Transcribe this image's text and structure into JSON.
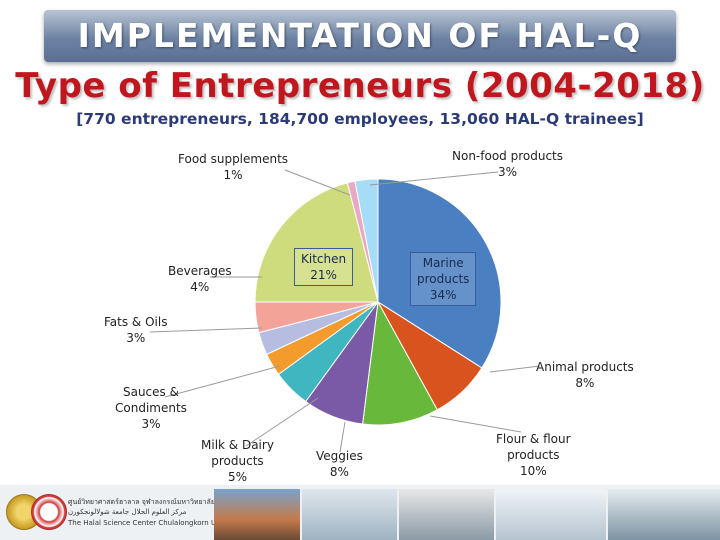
{
  "header": {
    "banner": "IMPLEMENTATION OF HAL-Q",
    "title": "Type of Entrepreneurs (2004-2018)",
    "subtitle": "[770 entrepreneurs, 184,700 employees, 13,060 HAL-Q trainees]"
  },
  "chart_data": {
    "type": "pie",
    "title": "Type of Entrepreneurs (2004-2018)",
    "slices": [
      {
        "label": "Marine products",
        "value": 34,
        "text": "34%",
        "color": "#4a7fc1"
      },
      {
        "label": "Animal products",
        "value": 8,
        "text": "8%",
        "color": "#d9531e"
      },
      {
        "label": "Flour & flour products",
        "value": 10,
        "text": "10%",
        "color": "#67b83b"
      },
      {
        "label": "Veggies",
        "value": 8,
        "text": "8%",
        "color": "#7a5aa7"
      },
      {
        "label": "Milk & Dairy products",
        "value": 5,
        "text": "5%",
        "color": "#3fb6c0"
      },
      {
        "label": "Sauces & Condiments",
        "value": 3,
        "text": "3%",
        "color": "#f39b2d"
      },
      {
        "label": "Fats & Oils",
        "value": 3,
        "text": "3%",
        "color": "#b7bde1"
      },
      {
        "label": "Beverages",
        "value": 4,
        "text": "4%",
        "color": "#f3a398"
      },
      {
        "label": "Kitchen",
        "value": 21,
        "text": "21%",
        "color": "#cfdc7e"
      },
      {
        "label": "Food supplements",
        "value": 1,
        "text": "1%",
        "color": "#e9a9c6"
      },
      {
        "label": "Non-food products",
        "value": 3,
        "text": "3%",
        "color": "#a7dcf6"
      }
    ]
  },
  "footer": {
    "line1": "ศูนย์วิทยาศาสตร์ฮาลาล จุฬาลงกรณ์มหาวิทยาลัย",
    "line2": "مركز العلوم الحلال جامعة شولالونجكورن",
    "line3": "The Halal Science Center Chulalongkorn University"
  }
}
